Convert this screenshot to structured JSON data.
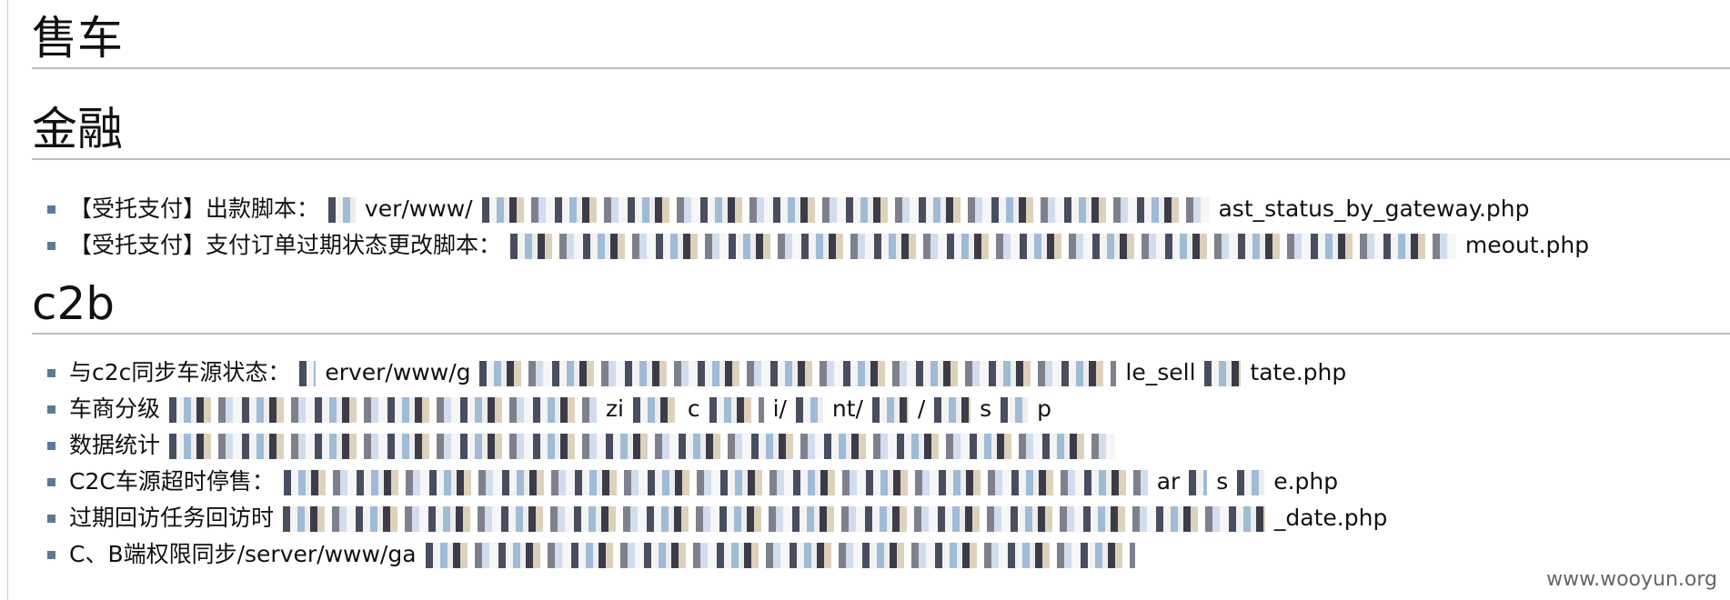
{
  "sections": [
    {
      "title": "售车"
    },
    {
      "title": "金融",
      "items": [
        {
          "prefix": "【受托支付】出款脚本：",
          "visible_a": "ver/www/",
          "visible_b": "ast_status_by_gateway.php"
        },
        {
          "prefix": "【受托支付】支付订单过期状态更改脚本：",
          "visible_a": "",
          "visible_b": "meout.php"
        }
      ]
    },
    {
      "title": "c2b",
      "items": [
        {
          "prefix": "与c2c同步车源状态：",
          "visible_a": "erver/www/g",
          "visible_b": "le_sell",
          "visible_c": "tate.php"
        },
        {
          "prefix": "车商分级",
          "visible_a": "zi",
          "visible_b": "c",
          "visible_c": "i/",
          "visible_d": "nt/",
          "visible_e": "/",
          "visible_f": "s",
          "visible_g": "p"
        },
        {
          "prefix": "数据统计",
          "visible_a": "",
          "visible_b": ""
        },
        {
          "prefix": "C2C车源超时停售：",
          "visible_a": "",
          "visible_b": "ar",
          "visible_c": "s",
          "visible_d": "e.php"
        },
        {
          "prefix": "过期回访任务回访时",
          "visible_a": "",
          "visible_b": "_date.php"
        },
        {
          "prefix": "C、B端权限同步/server/www/ga",
          "visible_a": "",
          "visible_b": ""
        }
      ]
    }
  ],
  "watermark": "www.wooyun.org"
}
